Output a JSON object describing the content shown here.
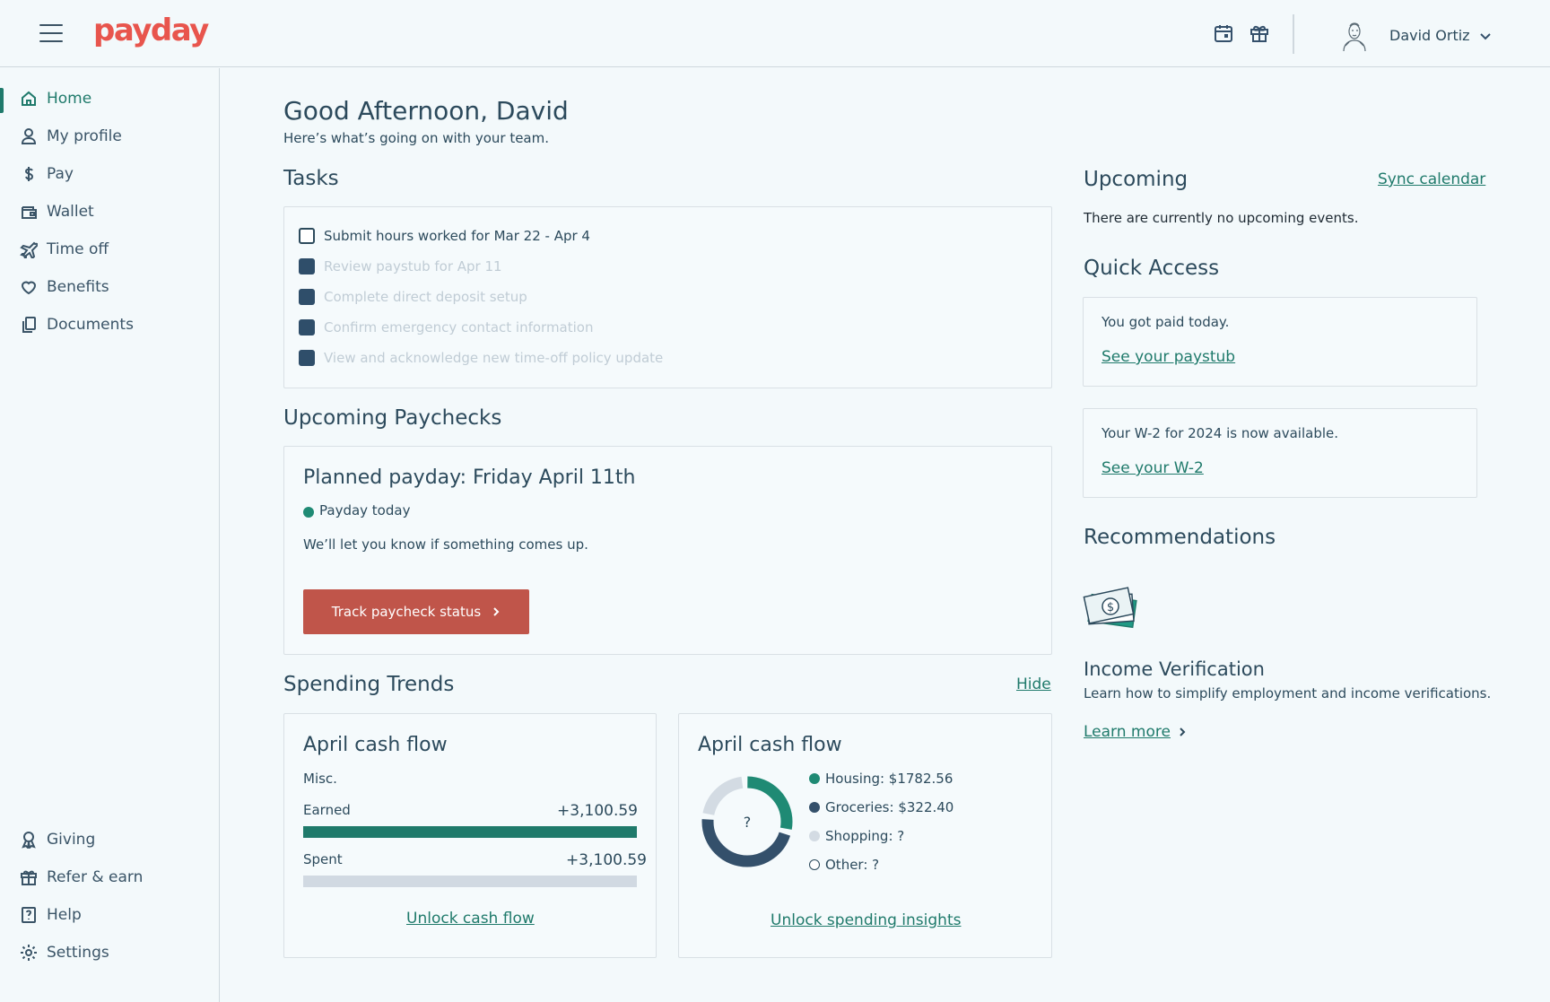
{
  "brand": {
    "logo_text": "payday",
    "accent": "#1f7a6b",
    "logo_color": "#e8554d",
    "button_color": "#c0554a"
  },
  "header": {
    "icons": [
      "menu-icon",
      "calendar-icon",
      "gift-icon",
      "avatar",
      "chevron-down-icon"
    ],
    "user_name": "David Ortiz"
  },
  "sidebar": {
    "items": [
      {
        "label": "Home",
        "icon": "home-icon",
        "active": true
      },
      {
        "label": "My profile",
        "icon": "user-icon"
      },
      {
        "label": "Pay",
        "icon": "dollar-icon"
      },
      {
        "label": "Wallet",
        "icon": "wallet-icon"
      },
      {
        "label": "Time off",
        "icon": "plane-icon"
      },
      {
        "label": "Benefits",
        "icon": "heart-icon"
      },
      {
        "label": "Documents",
        "icon": "documents-icon"
      }
    ],
    "bottom_items": [
      {
        "label": "Giving",
        "icon": "ribbon-icon"
      },
      {
        "label": "Refer & earn",
        "icon": "gift-icon"
      },
      {
        "label": "Help",
        "icon": "help-icon"
      },
      {
        "label": "Settings",
        "icon": "gear-icon"
      }
    ]
  },
  "main": {
    "greeting": "Good Afternoon, David",
    "subgreeting": "Here’s what’s going on with your team.",
    "tasks": {
      "title": "Tasks",
      "items": [
        {
          "label": "Submit hours worked for Mar 22 - Apr 4",
          "done": false
        },
        {
          "label": "Review paystub for Apr 11",
          "done": true
        },
        {
          "label": "Complete direct deposit setup",
          "done": true
        },
        {
          "label": "Confirm emergency contact information",
          "done": true
        },
        {
          "label": "View and acknowledge new time-off policy update",
          "done": true
        }
      ]
    },
    "paychecks": {
      "title": "Upcoming Paychecks",
      "planned": "Planned payday: Friday April 11th",
      "status": "Payday today",
      "note": "We’ll let you know if something comes up.",
      "button": "Track paycheck status"
    },
    "spending": {
      "title": "Spending Trends",
      "hide_label": "Hide",
      "cashflow": {
        "title": "April cash flow",
        "category": "Misc.",
        "earned_label": "Earned",
        "earned_value": "+3,100.59",
        "earned_fill": 1.0,
        "spent_label": "Spent",
        "spent_value": "+3,100.59",
        "spent_fill": 0.0,
        "link": "Unlock cash flow"
      },
      "insights": {
        "title": "April cash flow",
        "center_label": "?",
        "link": "Unlock spending insights"
      }
    }
  },
  "chart_data": {
    "type": "pie",
    "title": "April cash flow",
    "categories": [
      "Housing",
      "Groceries",
      "Shopping",
      "Other"
    ],
    "labels": [
      "Housing: $1782.56",
      "Groceries: $322.40",
      "Shopping: ?",
      "Other: ?"
    ],
    "values": [
      0.3,
      0.48,
      0.22,
      0.0
    ],
    "colors": [
      "#1f8a74",
      "#34506b",
      "#d3dbe3",
      "#ffffff"
    ],
    "legend_position": "right"
  },
  "right": {
    "upcoming_title": "Upcoming",
    "sync_label": "Sync calendar",
    "no_events": "There are currently no upcoming events.",
    "quick_access_title": "Quick Access",
    "quick_access": [
      {
        "text": "You got paid today.",
        "link": "See your paystub"
      },
      {
        "text": "Your W-2 for 2024 is now available.",
        "link": "See your W-2"
      }
    ],
    "recommendations_title": "Recommendations",
    "recommendation": {
      "icon": "money-icon",
      "title": "Income Verification",
      "description": "Learn how to simplify employment and income verifications.",
      "link": "Learn more"
    }
  }
}
